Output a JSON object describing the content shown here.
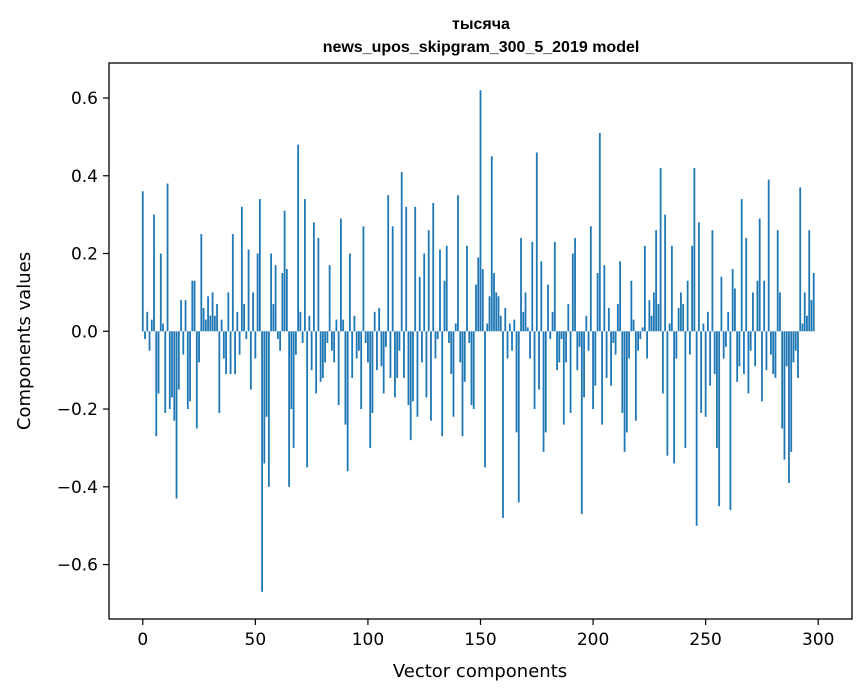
{
  "chart_data": {
    "type": "bar",
    "title": "тысяча",
    "subtitle": "news_upos_skipgram_300_5_2019 model",
    "xlabel": "Vector components",
    "ylabel": "Components values",
    "xlim": [
      -15,
      315
    ],
    "ylim": [
      -0.74,
      0.69
    ],
    "xticks": [
      0,
      50,
      100,
      150,
      200,
      250,
      300
    ],
    "xtick_labels": [
      "0",
      "50",
      "100",
      "150",
      "200",
      "250",
      "300"
    ],
    "yticks": [
      -0.6,
      -0.4,
      -0.2,
      0.0,
      0.2,
      0.4,
      0.6
    ],
    "ytick_labels": [
      "−0.6",
      "−0.4",
      "−0.2",
      "0.0",
      "0.2",
      "0.4",
      "0.6"
    ],
    "grid": false,
    "bar_color": "#1f77b4",
    "series": [
      {
        "x_start": 0,
        "values": [
          0.36,
          -0.02,
          0.05,
          -0.05,
          0.03,
          0.3,
          -0.27,
          -0.16,
          0.2,
          0.02,
          -0.21,
          0.38,
          -0.2,
          -0.17,
          -0.23,
          -0.43,
          -0.15,
          0.08,
          -0.06,
          0.08,
          -0.2,
          -0.18,
          0.13,
          0.13,
          -0.25,
          -0.08,
          0.25,
          0.06,
          0.03,
          0.09,
          0.04,
          0.1,
          0.04,
          0.07,
          -0.21,
          0.03,
          -0.07,
          -0.11,
          0.1,
          -0.11,
          0.25,
          -0.11,
          0.05,
          -0.06,
          0.32,
          0.07,
          -0.02,
          0.21,
          -0.15,
          0.1,
          -0.07,
          0.2,
          0.34,
          -0.67,
          -0.34,
          -0.22,
          -0.4,
          0.2,
          0.07,
          0.17,
          -0.02,
          -0.05,
          0.15,
          0.31,
          0.16,
          -0.4,
          -0.2,
          -0.3,
          -0.06,
          0.48,
          0.05,
          -0.03,
          0.34,
          -0.35,
          0.04,
          -0.1,
          0.28,
          -0.16,
          0.24,
          -0.13,
          -0.12,
          -0.08,
          -0.03,
          0.17,
          -0.05,
          -0.08,
          0.03,
          -0.19,
          0.29,
          0.03,
          -0.24,
          -0.36,
          0.2,
          -0.12,
          0.04,
          -0.07,
          -0.05,
          -0.2,
          0.27,
          -0.03,
          -0.08,
          -0.3,
          -0.21,
          0.05,
          -0.1,
          0.06,
          -0.09,
          -0.16,
          -0.04,
          0.35,
          -0.12,
          0.27,
          -0.17,
          -0.12,
          -0.05,
          0.41,
          -0.12,
          0.32,
          -0.19,
          -0.28,
          -0.18,
          0.32,
          -0.22,
          0.14,
          -0.08,
          0.2,
          -0.17,
          0.26,
          -0.23,
          0.33,
          -0.07,
          -0.02,
          0.21,
          -0.27,
          0.13,
          0.22,
          -0.03,
          -0.11,
          -0.22,
          0.02,
          0.35,
          -0.08,
          -0.27,
          -0.13,
          0.22,
          -0.03,
          -0.19,
          -0.2,
          0.12,
          0.19,
          0.62,
          0.16,
          -0.35,
          0.02,
          0.09,
          0.45,
          0.15,
          0.1,
          0.09,
          0.04,
          -0.48,
          0.06,
          -0.07,
          0.02,
          -0.05,
          0.03,
          -0.26,
          -0.44,
          0.24,
          0.05,
          0.1,
          0.01,
          -0.07,
          0.23,
          -0.2,
          0.46,
          -0.15,
          0.18,
          -0.31,
          -0.26,
          0.12,
          -0.02,
          0.05,
          0.23,
          -0.1,
          -0.08,
          -0.02,
          -0.24,
          -0.08,
          0.07,
          -0.21,
          0.2,
          0.24,
          -0.1,
          -0.04,
          -0.47,
          -0.17,
          0.04,
          -0.05,
          0.27,
          -0.2,
          -0.14,
          0.15,
          0.51,
          -0.24,
          0.17,
          -0.12,
          0.06,
          -0.14,
          -0.03,
          -0.06,
          0.07,
          0.18,
          -0.21,
          -0.31,
          -0.26,
          -0.07,
          0.13,
          0.03,
          -0.23,
          -0.05,
          -0.02,
          0.01,
          0.22,
          -0.07,
          0.08,
          0.04,
          0.1,
          0.26,
          0.07,
          0.42,
          -0.16,
          0.3,
          -0.32,
          0.02,
          0.22,
          -0.34,
          -0.07,
          0.06,
          0.1,
          0.07,
          -0.3,
          0.13,
          -0.06,
          0.22,
          0.42,
          -0.5,
          0.28,
          -0.21,
          0.02,
          -0.22,
          0.05,
          -0.14,
          0.26,
          -0.11,
          -0.3,
          -0.45,
          0.14,
          -0.07,
          -0.04,
          0.05,
          -0.46,
          0.16,
          0.11,
          -0.13,
          -0.09,
          0.34,
          -0.11,
          0.24,
          -0.16,
          -0.05,
          0.1,
          -0.09,
          0.13,
          0.29,
          -0.18,
          0.13,
          -0.1,
          0.39,
          -0.06,
          -0.11,
          -0.12,
          0.26,
          0.1,
          -0.25,
          -0.33,
          -0.09,
          -0.39,
          -0.31,
          -0.08,
          -0.05,
          -0.12,
          0.37,
          0.02,
          0.1,
          0.04,
          0.26,
          0.08,
          0.15
        ]
      }
    ]
  }
}
